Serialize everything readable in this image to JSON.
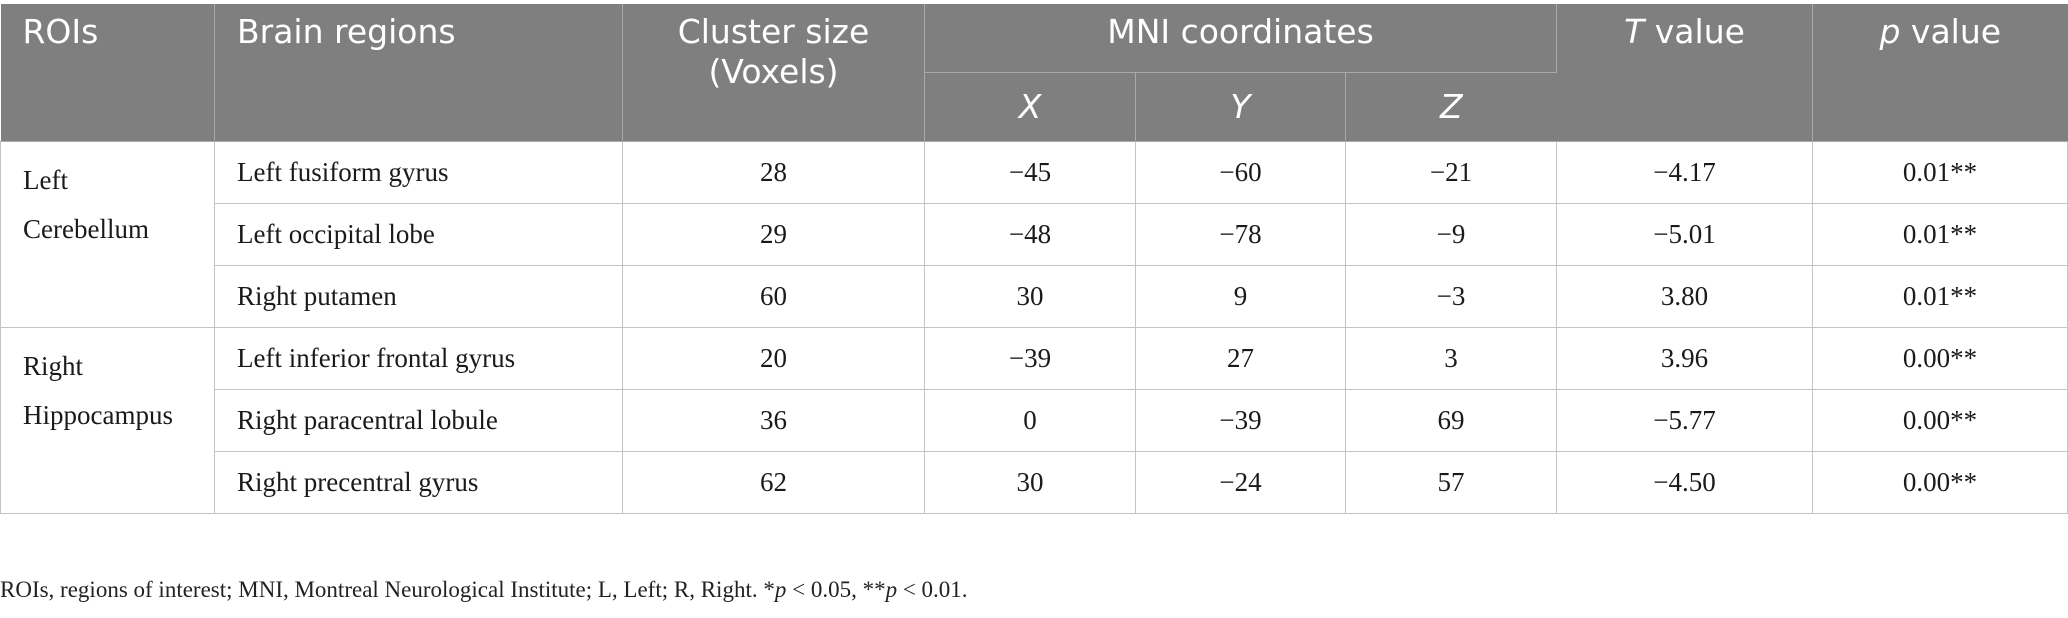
{
  "table": {
    "headers": {
      "rois": "ROIs",
      "brain_regions": "Brain regions",
      "cluster_size_line1": "Cluster size",
      "cluster_size_line2": "(Voxels)",
      "mni": "MNI coordinates",
      "x": "X",
      "y": "Y",
      "z": "Z",
      "t_italic": "T",
      "t_rest": " value",
      "p_italic": "p",
      "p_rest": " value"
    },
    "groups": [
      {
        "roi_line1": "Left",
        "roi_line2": "Cerebellum",
        "rows": [
          {
            "region": "Left fusiform gyrus",
            "cluster": "28",
            "x": "−45",
            "y": "−60",
            "z": "−21",
            "t": "−4.17",
            "p": "0.01**"
          },
          {
            "region": "Left occipital lobe",
            "cluster": "29",
            "x": "−48",
            "y": "−78",
            "z": "−9",
            "t": "−5.01",
            "p": "0.01**"
          },
          {
            "region": "Right putamen",
            "cluster": "60",
            "x": "30",
            "y": "9",
            "z": "−3",
            "t": "3.80",
            "p": "0.01**"
          }
        ]
      },
      {
        "roi_line1": "Right",
        "roi_line2": "Hippocampus",
        "rows": [
          {
            "region": "Left inferior frontal gyrus",
            "cluster": "20",
            "x": "−39",
            "y": "27",
            "z": "3",
            "t": "3.96",
            "p": "0.00**"
          },
          {
            "region": "Right paracentral lobule",
            "cluster": "36",
            "x": "0",
            "y": "−39",
            "z": "69",
            "t": "−5.77",
            "p": "0.00**"
          },
          {
            "region": "Right precentral gyrus",
            "cluster": "62",
            "x": "30",
            "y": "−24",
            "z": "57",
            "t": "−4.50",
            "p": "0.00**"
          }
        ]
      }
    ]
  },
  "footnote": {
    "part1": "ROIs, regions of interest; MNI, Montreal Neurological Institute; L, Left; R, Right. *",
    "p1": "p",
    "part2": " < 0.05, **",
    "p2": "p",
    "part3": " < 0.01."
  }
}
